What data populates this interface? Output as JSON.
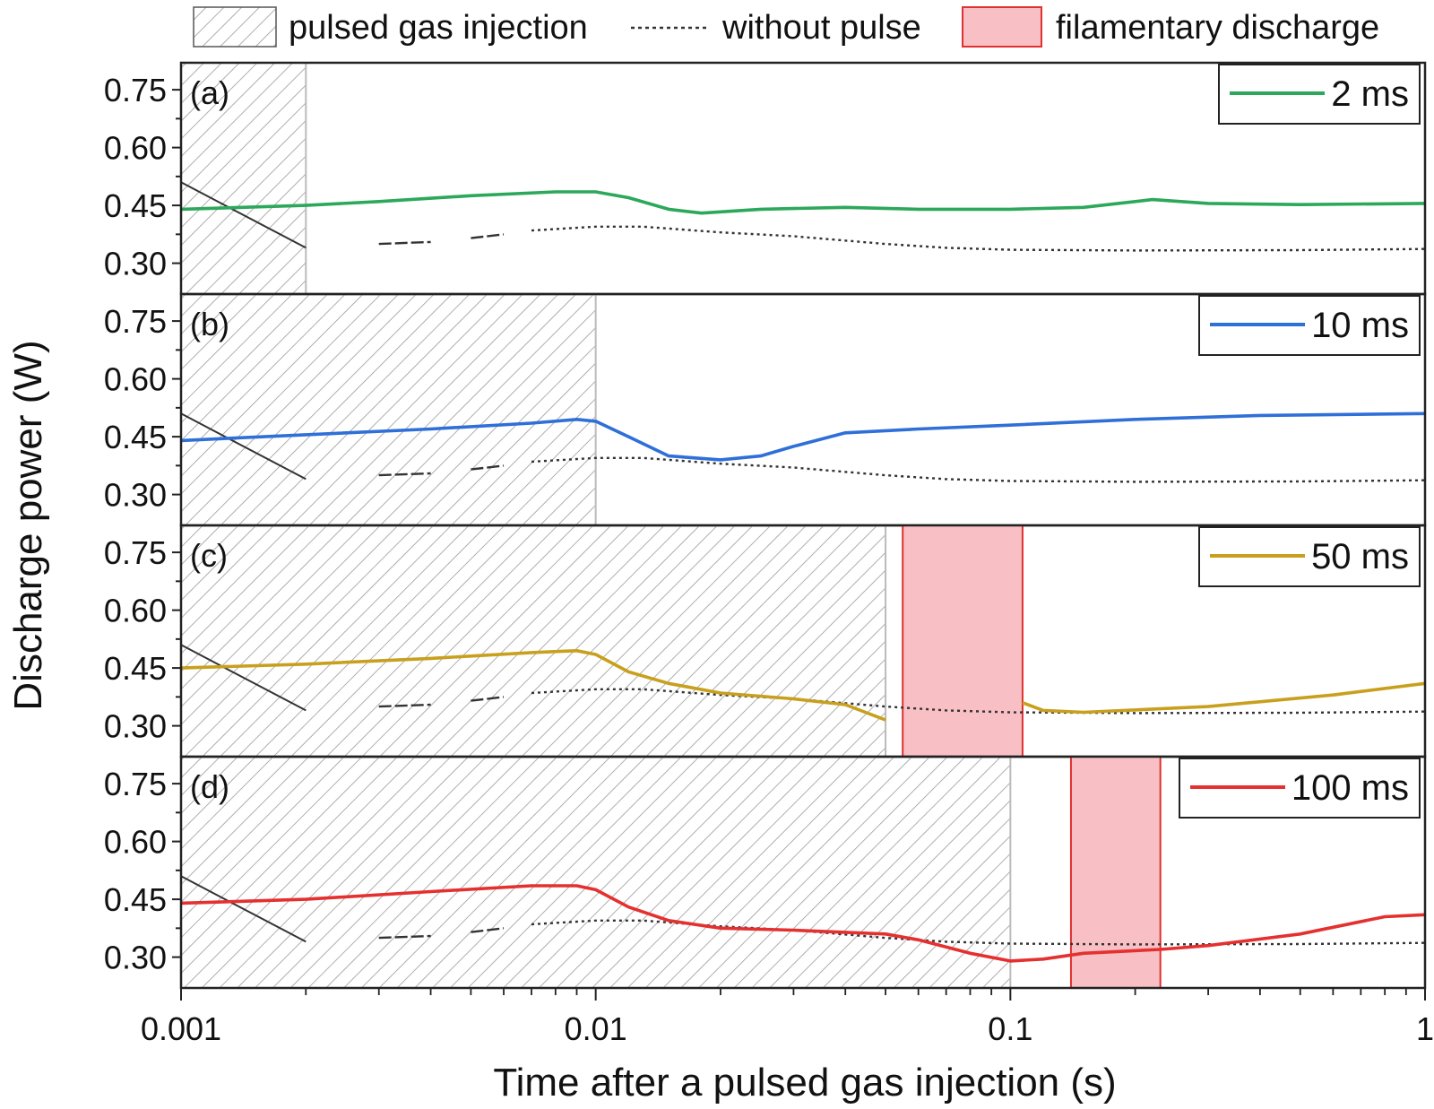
{
  "legend": {
    "items": [
      {
        "label": "pulsed gas injection",
        "kind": "hatch"
      },
      {
        "label": "without pulse",
        "kind": "dotted"
      },
      {
        "label": "filamentary discharge",
        "kind": "fill",
        "color": "#f8c0c4",
        "edge": "#e03030"
      }
    ]
  },
  "colors": {
    "hatch": "#9a9a9a",
    "baseline": "#333333",
    "filament_fill": "#f8c0c4",
    "filament_edge": "#e03030"
  },
  "chart_data": {
    "type": "line",
    "xlabel": "Time after a pulsed gas injection (s)",
    "ylabel": "Discharge power (W)",
    "xscale": "log",
    "xlim": [
      0.001,
      1
    ],
    "ylim": [
      0.22,
      0.82
    ],
    "x_ticks": [
      0.001,
      0.01,
      0.1,
      1
    ],
    "x_tick_labels": [
      "0.001",
      "0.01",
      "0.1",
      "1"
    ],
    "y_ticks": [
      0.75,
      0.6,
      0.45,
      0.3
    ],
    "y_tick_labels": [
      "0.75",
      "0.60",
      "0.45",
      "0.30"
    ],
    "without_pulse": {
      "segments": [
        {
          "x": [
            0.001,
            0.002
          ],
          "y": [
            0.51,
            0.34
          ]
        },
        {
          "x": [
            0.003,
            0.004
          ],
          "y": [
            0.35,
            0.355
          ]
        },
        {
          "x": [
            0.005,
            0.006
          ],
          "y": [
            0.365,
            0.375
          ]
        },
        {
          "x": [
            0.007,
            0.01,
            0.013,
            0.02,
            0.03,
            0.05,
            0.07,
            0.1,
            0.2,
            0.5,
            1
          ],
          "y": [
            0.385,
            0.395,
            0.395,
            0.38,
            0.37,
            0.35,
            0.34,
            0.335,
            0.333,
            0.334,
            0.337
          ]
        }
      ]
    },
    "panels": [
      {
        "label": "(a)",
        "legend_label": "2 ms",
        "color": "#2ca85a",
        "pulse_end": 0.002,
        "filament": null,
        "x": [
          0.001,
          0.002,
          0.003,
          0.005,
          0.008,
          0.01,
          0.012,
          0.015,
          0.018,
          0.025,
          0.04,
          0.06,
          0.1,
          0.15,
          0.22,
          0.3,
          0.5,
          1
        ],
        "y": [
          0.44,
          0.45,
          0.46,
          0.475,
          0.485,
          0.485,
          0.47,
          0.44,
          0.43,
          0.44,
          0.445,
          0.44,
          0.44,
          0.445,
          0.465,
          0.455,
          0.452,
          0.455
        ]
      },
      {
        "label": "(b)",
        "legend_label": "10 ms",
        "color": "#2f6fd8",
        "pulse_end": 0.01,
        "filament": null,
        "x": [
          0.001,
          0.002,
          0.004,
          0.007,
          0.009,
          0.01,
          0.012,
          0.015,
          0.02,
          0.025,
          0.03,
          0.04,
          0.06,
          0.1,
          0.2,
          0.4,
          1
        ],
        "y": [
          0.44,
          0.455,
          0.47,
          0.485,
          0.495,
          0.49,
          0.45,
          0.4,
          0.39,
          0.4,
          0.425,
          0.46,
          0.47,
          0.48,
          0.495,
          0.505,
          0.51
        ]
      },
      {
        "label": "(c)",
        "legend_label": "50 ms",
        "color": "#c8a01e",
        "pulse_end": 0.05,
        "filament": [
          0.055,
          0.107
        ],
        "break_after_index": 9,
        "x": [
          0.001,
          0.002,
          0.004,
          0.007,
          0.009,
          0.01,
          0.012,
          0.015,
          0.02,
          0.03,
          0.04,
          0.05,
          0.107,
          0.12,
          0.15,
          0.3,
          0.6,
          1
        ],
        "y": [
          0.45,
          0.46,
          0.475,
          0.49,
          0.495,
          0.485,
          0.44,
          0.41,
          0.385,
          0.37,
          0.355,
          0.315,
          0.36,
          0.34,
          0.335,
          0.35,
          0.38,
          0.41
        ],
        "break_at": 12
      },
      {
        "label": "(d)",
        "legend_label": "100 ms",
        "color": "#e53030",
        "pulse_end": 0.1,
        "filament": [
          0.14,
          0.23
        ],
        "x": [
          0.001,
          0.002,
          0.004,
          0.007,
          0.009,
          0.01,
          0.012,
          0.015,
          0.02,
          0.03,
          0.05,
          0.06,
          0.08,
          0.1,
          0.12,
          0.15,
          0.23,
          0.3,
          0.5,
          0.8,
          1
        ],
        "y": [
          0.44,
          0.45,
          0.47,
          0.485,
          0.485,
          0.475,
          0.43,
          0.395,
          0.375,
          0.37,
          0.36,
          0.345,
          0.31,
          0.29,
          0.295,
          0.31,
          0.32,
          0.33,
          0.36,
          0.405,
          0.41
        ]
      }
    ]
  }
}
